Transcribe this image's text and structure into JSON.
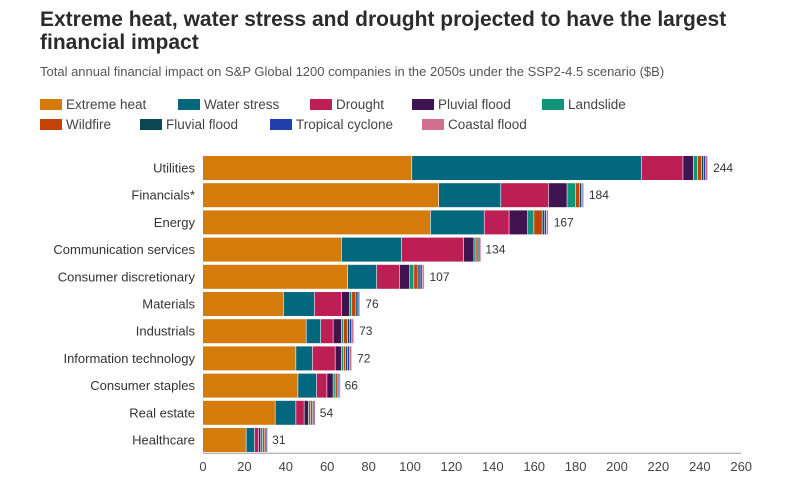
{
  "title": "Extreme heat, water stress and drought projected to have the largest financial impact",
  "subtitle": "Total annual financial impact on S&P Global 1200 companies in the 2050s under the SSP2-4.5 scenario ($B)",
  "chart_data": {
    "type": "bar",
    "orientation": "horizontal",
    "stacked": true,
    "title": "Extreme heat, water stress and drought projected to have the largest financial impact",
    "subtitle": "Total annual financial impact on S&P Global 1200 companies in the 2050s under the SSP2-4.5 scenario ($B)",
    "xlabel": "",
    "ylabel": "",
    "xlim": [
      0,
      260
    ],
    "x_ticks": [
      0,
      20,
      40,
      60,
      80,
      100,
      120,
      140,
      160,
      180,
      200,
      220,
      240,
      260
    ],
    "grid": false,
    "legend_position": "top",
    "categories": [
      "Utilities",
      "Financials*",
      "Energy",
      "Communication services",
      "Consumer discretionary",
      "Materials",
      "Industrials",
      "Information technology",
      "Consumer staples",
      "Real estate",
      "Healthcare"
    ],
    "totals": [
      244,
      184,
      167,
      134,
      107,
      76,
      73,
      72,
      66,
      54,
      31
    ],
    "series": [
      {
        "name": "Extreme heat",
        "color": "#d47b0b",
        "values": [
          101,
          114,
          110,
          67,
          70,
          39,
          50,
          45,
          46,
          35,
          21
        ]
      },
      {
        "name": "Water stress",
        "color": "#03677e",
        "values": [
          111,
          30,
          26,
          29,
          14,
          15,
          7,
          8,
          9,
          10,
          4
        ]
      },
      {
        "name": "Drought",
        "color": "#bd1f55",
        "values": [
          20,
          23,
          12,
          30,
          11,
          13,
          6,
          11,
          5,
          4,
          2
        ]
      },
      {
        "name": "Pluvial flood",
        "color": "#3f1450",
        "values": [
          5,
          9,
          9,
          5,
          5,
          4,
          4,
          3,
          3,
          2,
          1
        ]
      },
      {
        "name": "Landslide",
        "color": "#119578",
        "values": [
          2,
          4,
          3,
          1,
          2,
          1,
          1,
          1,
          1,
          1,
          1
        ]
      },
      {
        "name": "Wildfire",
        "color": "#c64106",
        "values": [
          2,
          2,
          4,
          1,
          2,
          2,
          2,
          1,
          1,
          1,
          1
        ]
      },
      {
        "name": "Fluvial flood",
        "color": "#0c4854",
        "values": [
          1,
          1,
          1,
          0.5,
          1,
          1,
          1,
          1,
          0.5,
          0.5,
          0.5
        ]
      },
      {
        "name": "Tropical cyclone",
        "color": "#2140ac",
        "values": [
          1,
          0.5,
          1,
          0.5,
          1,
          0.5,
          1,
          1,
          0.5,
          0.3,
          0.3
        ]
      },
      {
        "name": "Coastal flood",
        "color": "#d26e8e",
        "values": [
          1,
          0.5,
          1,
          0.5,
          1,
          0.5,
          1,
          1,
          0.5,
          0.2,
          0.2
        ]
      }
    ]
  }
}
